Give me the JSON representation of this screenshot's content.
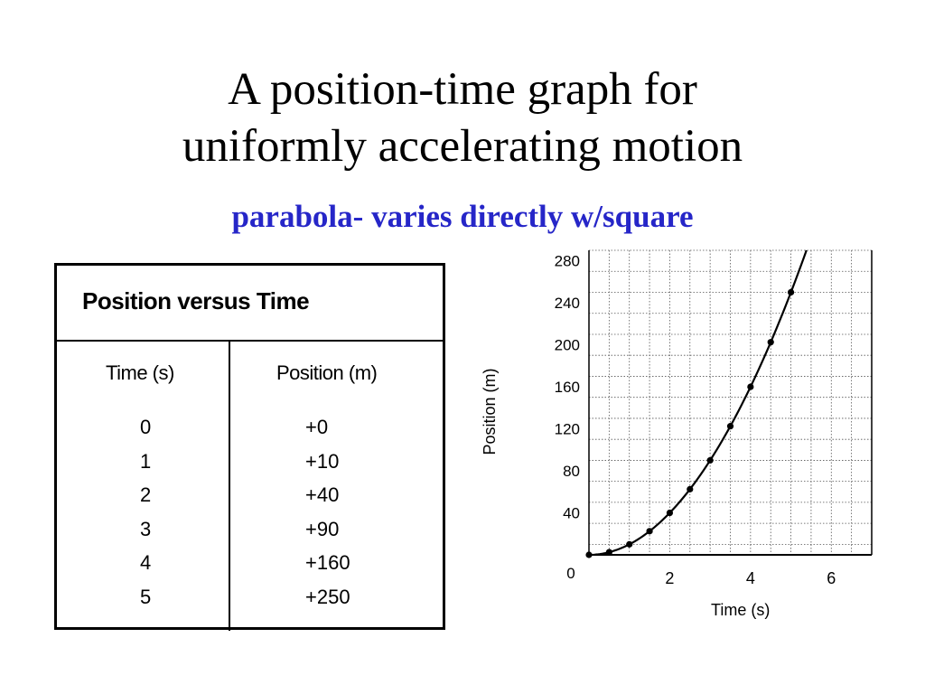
{
  "slide": {
    "title_line1": "A position-time graph for",
    "title_line2": "uniformly accelerating motion",
    "subtitle": "parabola- varies directly w/square",
    "subtitle_color": "#2626c8"
  },
  "table": {
    "title": "Position versus Time",
    "col_time": "Time (s)",
    "col_position": "Position (m)",
    "rows": [
      {
        "time": "0",
        "position": "+0"
      },
      {
        "time": "1",
        "position": "+10"
      },
      {
        "time": "2",
        "position": "+40"
      },
      {
        "time": "3",
        "position": "+90"
      },
      {
        "time": "4",
        "position": "+160"
      },
      {
        "time": "5",
        "position": "+250"
      }
    ]
  },
  "chart_data": {
    "type": "line",
    "xlabel": "Time (s)",
    "ylabel": "Position (m)",
    "xlim": [
      0,
      7
    ],
    "ylim": [
      0,
      290
    ],
    "x_ticks": [
      2,
      4,
      6
    ],
    "y_ticks": [
      40,
      80,
      120,
      160,
      200,
      240,
      280
    ],
    "origin_label": "0",
    "grid": true,
    "curve": "position = 10 * time^2",
    "points": [
      {
        "x": 0,
        "y": 0
      },
      {
        "x": 0.5,
        "y": 2.5
      },
      {
        "x": 1,
        "y": 10
      },
      {
        "x": 1.5,
        "y": 22.5
      },
      {
        "x": 2,
        "y": 40
      },
      {
        "x": 2.5,
        "y": 62.5
      },
      {
        "x": 3,
        "y": 90
      },
      {
        "x": 3.5,
        "y": 122.5
      },
      {
        "x": 4,
        "y": 160
      },
      {
        "x": 4.5,
        "y": 202.5
      },
      {
        "x": 5,
        "y": 250
      }
    ]
  }
}
